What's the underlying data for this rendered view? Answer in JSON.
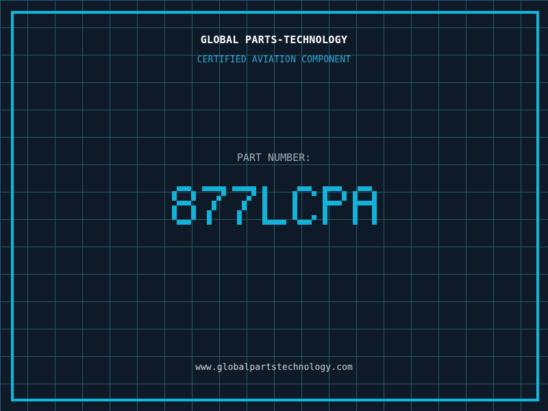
{
  "header": {
    "company_name": "GLOBAL PARTS-TECHNOLOGY",
    "tagline": "CERTIFIED AVIATION COMPONENT"
  },
  "part": {
    "label": "PART NUMBER:",
    "value": "877LCPA"
  },
  "footer": {
    "website": "www.globalpartstechnology.com"
  },
  "colors": {
    "background": "#0f1a28",
    "grid_line": "#245a6e",
    "frame": "#0db8dd",
    "title": "#ffffff",
    "tagline": "#2fa9d6",
    "label": "#a5aeb9",
    "part_number": "#14b2d8",
    "website": "#cfd8df"
  }
}
